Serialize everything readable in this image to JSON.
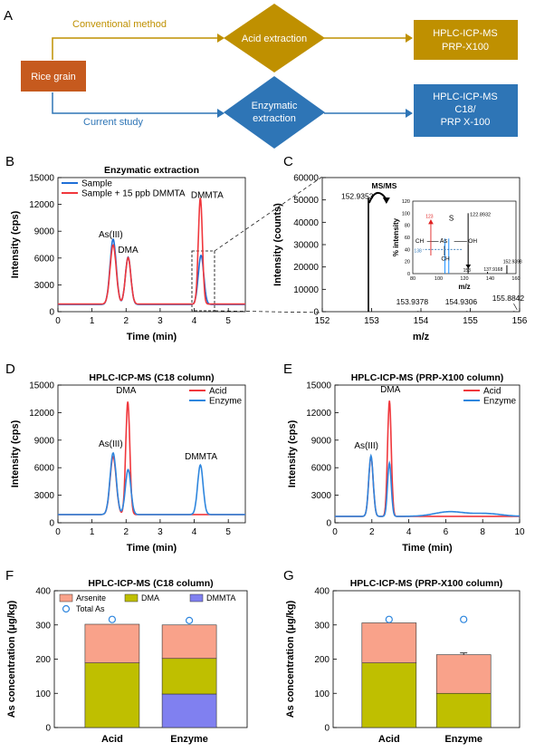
{
  "panel_letters": {
    "a": "A",
    "b": "B",
    "c": "C",
    "d": "D",
    "e": "E",
    "f": "F",
    "g": "G"
  },
  "schematic": {
    "rice": "Rice grain",
    "conventional": "Conventional method",
    "current": "Current study",
    "acid": "Acid extraction",
    "enzymatic_1": "Enzymatic",
    "enzymatic_2": "extraction",
    "out_top_1": "HPLC-ICP-MS",
    "out_top_2": "PRP-X100",
    "out_bot_1": "HPLC-ICP-MS",
    "out_bot_2": "C18/",
    "out_bot_3": "PRP X-100",
    "colors": {
      "rice": "#C65A1E",
      "gold": "#BF9000",
      "blue": "#2E75B6"
    }
  },
  "chart_data": [
    {
      "id": "B",
      "type": "line",
      "title": "Enzymatic extraction",
      "xlabel": "Time (min)",
      "ylabel": "Intensity (cps)",
      "xlim": [
        0,
        5.5
      ],
      "ylim": [
        0,
        15000
      ],
      "xticks": [
        0,
        1,
        2,
        3,
        4,
        5
      ],
      "yticks": [
        0,
        3000,
        6000,
        9000,
        12000,
        15000
      ],
      "legend": "top-left",
      "series": [
        {
          "name": "Sample",
          "color": "#1F6FD6",
          "baseline": 800,
          "peaks": [
            {
              "t": 1.62,
              "h": 7300,
              "w": 0.09
            },
            {
              "t": 2.06,
              "h": 5300,
              "w": 0.08
            },
            {
              "t": 4.2,
              "h": 5500,
              "w": 0.08
            }
          ]
        },
        {
          "name": "Sample + 15 ppb DMMTA",
          "color": "#F0373C",
          "baseline": 850,
          "peaks": [
            {
              "t": 1.62,
              "h": 6600,
              "w": 0.09
            },
            {
              "t": 2.06,
              "h": 5200,
              "w": 0.08
            },
            {
              "t": 4.18,
              "h": 11900,
              "w": 0.06
            }
          ]
        }
      ],
      "annotations": [
        {
          "text": "As(III)",
          "x": 1.55,
          "y": 8300
        },
        {
          "text": "DMA",
          "x": 2.06,
          "y": 6600
        },
        {
          "text": "DMMTA",
          "x": 4.38,
          "y": 12700
        }
      ]
    },
    {
      "id": "C",
      "type": "bar",
      "title": "",
      "xlabel": "m/z",
      "ylabel": "Intensity (counts)",
      "xlim": [
        152,
        156
      ],
      "ylim": [
        0,
        60000
      ],
      "xticks": [
        152,
        153,
        154,
        155,
        156
      ],
      "yticks": [
        0,
        10000,
        20000,
        30000,
        40000,
        50000,
        60000
      ],
      "bars": [
        {
          "x": 152.9353,
          "y": 51000,
          "label": "152.9353"
        },
        {
          "x": 153.9378,
          "y": 250,
          "label": "153.9378"
        },
        {
          "x": 154.9306,
          "y": 250,
          "label": "154.9306"
        },
        {
          "x": 155.8842,
          "y": 250,
          "label": "155.8842"
        }
      ],
      "annotation": "MS/MS",
      "inset": {
        "xlabel": "m/z",
        "ylabel": "% intensity",
        "xlim": [
          80,
          160
        ],
        "ylim": [
          0,
          120
        ],
        "xticks": [
          80,
          100,
          120,
          140,
          160
        ],
        "yticks": [
          0,
          20,
          40,
          60,
          80,
          100,
          120
        ],
        "bars": [
          {
            "x": 122.8932,
            "y": 100,
            "label": "122.8932",
            "color": "#000000"
          },
          {
            "x": 104.9,
            "y": 58,
            "label": "",
            "color": "#1E90FF"
          },
          {
            "x": 107.9,
            "y": 58,
            "label": "",
            "color": "#1E90FF"
          },
          {
            "x": 152.9398,
            "y": 14,
            "label": "152.9398",
            "color": "#000000"
          },
          {
            "x": 137.9168,
            "y": 3,
            "label": "137.9168",
            "color": "#000000"
          }
        ],
        "structure": {
          "s": "S",
          "as": "As",
          "ch3_a": "CH",
          "ch3_b": "CH",
          "oh": "OH",
          "m1": "123",
          "m2": "138",
          "m3": "153",
          "sub": "3"
        }
      }
    },
    {
      "id": "D",
      "type": "line",
      "title": "HPLC-ICP-MS (C18 column)",
      "xlabel": "Time (min)",
      "ylabel": "Intensity (cps)",
      "xlim": [
        0,
        5.5
      ],
      "ylim": [
        0,
        15000
      ],
      "xticks": [
        0,
        1,
        2,
        3,
        4,
        5
      ],
      "yticks": [
        0,
        3000,
        6000,
        9000,
        12000,
        15000
      ],
      "legend": "top-right",
      "series": [
        {
          "name": "Acid",
          "color": "#F0373C",
          "baseline": 900,
          "peaks": [
            {
              "t": 1.62,
              "h": 6300,
              "w": 0.09
            },
            {
              "t": 2.05,
              "h": 12300,
              "w": 0.06
            }
          ]
        },
        {
          "name": "Enzyme",
          "color": "#2E86DE",
          "baseline": 900,
          "peaks": [
            {
              "t": 1.62,
              "h": 6700,
              "w": 0.09
            },
            {
              "t": 2.06,
              "h": 4900,
              "w": 0.08
            },
            {
              "t": 4.18,
              "h": 5400,
              "w": 0.08
            }
          ]
        }
      ],
      "annotations": [
        {
          "text": "DMA",
          "x": 2.0,
          "y": 14100
        },
        {
          "text": "As(III)",
          "x": 1.55,
          "y": 8300
        },
        {
          "text": "DMMTA",
          "x": 4.2,
          "y": 6900
        }
      ]
    },
    {
      "id": "E",
      "type": "line",
      "title": "HPLC-ICP-MS (PRP-X100 column)",
      "xlabel": "Time (min)",
      "ylabel": "Intensity (cps)",
      "xlim": [
        0,
        10
      ],
      "ylim": [
        0,
        15000
      ],
      "xticks": [
        0,
        2,
        4,
        6,
        8,
        10
      ],
      "yticks": [
        0,
        3000,
        6000,
        9000,
        12000,
        15000
      ],
      "legend": "top-right",
      "series": [
        {
          "name": "Acid",
          "color": "#F0373C",
          "baseline": 700,
          "peaks": [
            {
              "t": 1.95,
              "h": 6500,
              "w": 0.12
            },
            {
              "t": 2.95,
              "h": 12600,
              "w": 0.1
            }
          ]
        },
        {
          "name": "Enzyme",
          "color": "#2E86DE",
          "baseline": 700,
          "peaks": [
            {
              "t": 1.95,
              "h": 6600,
              "w": 0.12
            },
            {
              "t": 2.95,
              "h": 5800,
              "w": 0.1
            },
            {
              "t": 6.2,
              "h": 500,
              "w": 0.8
            },
            {
              "t": 8.2,
              "h": 300,
              "w": 0.8
            }
          ]
        }
      ],
      "annotations": [
        {
          "text": "DMA",
          "x": 3.0,
          "y": 14200
        },
        {
          "text": "As(III)",
          "x": 1.7,
          "y": 8100
        }
      ]
    },
    {
      "id": "F",
      "type": "bar",
      "title": "HPLC-ICP-MS (C18 column)",
      "xlabel": "",
      "ylabel": "As concentration (μg/kg)",
      "ylim": [
        0,
        400
      ],
      "yticks": [
        0,
        100,
        200,
        300,
        400
      ],
      "categories": [
        "Acid",
        "Enzyme"
      ],
      "stacked": true,
      "series": [
        {
          "name": "DMMTA",
          "color": "#8080F0",
          "values": [
            0,
            98
          ],
          "err": [
            0,
            3
          ]
        },
        {
          "name": "DMA",
          "color": "#BFBF00",
          "values": [
            189,
            104
          ],
          "err": [
            4,
            4
          ]
        },
        {
          "name": "Arsenite",
          "color": "#F9A28A",
          "values": [
            113,
            98
          ],
          "err": [
            0,
            0
          ]
        }
      ],
      "total_as": {
        "name": "Total As",
        "values": [
          316,
          313
        ],
        "color": "#2E86DE"
      },
      "legend": "top-left"
    },
    {
      "id": "G",
      "type": "bar",
      "title": "HPLC-ICP-MS (PRP-X100 column)",
      "xlabel": "",
      "ylabel": "As concentration (μg/kg)",
      "ylim": [
        0,
        400
      ],
      "yticks": [
        0,
        100,
        200,
        300,
        400
      ],
      "categories": [
        "Acid",
        "Enzyme"
      ],
      "stacked": true,
      "series": [
        {
          "name": "DMA",
          "color": "#BFBF00",
          "values": [
            189,
            100
          ],
          "err": [
            4,
            4
          ]
        },
        {
          "name": "Arsenite",
          "color": "#F9A28A",
          "values": [
            117,
            113
          ],
          "err": [
            0,
            5
          ]
        }
      ],
      "total_as": {
        "name": "Total As",
        "values": [
          316,
          316
        ],
        "color": "#2E86DE"
      }
    }
  ]
}
